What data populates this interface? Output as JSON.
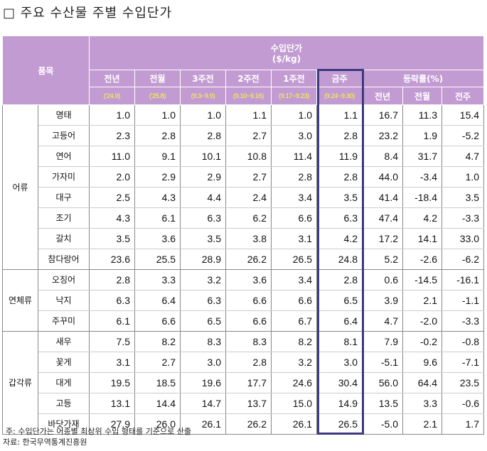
{
  "title": "□ 주요 수산물 주별 수입단가",
  "header": {
    "item": "품목",
    "price_group": "수입단가",
    "unit": "($/kg)",
    "cols": [
      "전년",
      "전월",
      "3주전",
      "2주전",
      "1주전",
      "금주"
    ],
    "periods": [
      "('24.9)",
      "('25.8)",
      "(9.3~9.9)",
      "(9.10~9.16)",
      "(9.17~9.23)",
      "(9.24~9.30)"
    ],
    "rate_group": "등락률(%)",
    "rate_cols": [
      "전년",
      "전월",
      "전주"
    ]
  },
  "groups": [
    {
      "name": "어류",
      "rows": [
        [
          "명태",
          "1.0",
          "1.0",
          "1.0",
          "1.1",
          "1.0",
          "1.1",
          "16.7",
          "11.3",
          "15.4"
        ],
        [
          "고등어",
          "2.3",
          "2.8",
          "2.8",
          "2.7",
          "3.0",
          "2.8",
          "23.2",
          "1.9",
          "-5.2"
        ],
        [
          "연어",
          "11.0",
          "9.1",
          "10.1",
          "10.8",
          "11.4",
          "11.9",
          "8.4",
          "31.7",
          "4.7"
        ],
        [
          "가자미",
          "2.0",
          "2.9",
          "2.9",
          "2.7",
          "2.8",
          "2.8",
          "44.0",
          "-3.4",
          "1.0"
        ],
        [
          "대구",
          "2.5",
          "4.3",
          "4.4",
          "2.4",
          "3.4",
          "3.5",
          "41.4",
          "-18.4",
          "3.5"
        ],
        [
          "조기",
          "4.3",
          "6.1",
          "6.3",
          "6.2",
          "6.6",
          "6.3",
          "47.4",
          "4.2",
          "-3.3"
        ],
        [
          "갈치",
          "3.5",
          "3.6",
          "3.5",
          "3.8",
          "3.1",
          "4.2",
          "17.2",
          "14.1",
          "33.0"
        ],
        [
          "참다랑어",
          "23.6",
          "25.5",
          "28.9",
          "26.2",
          "26.5",
          "24.8",
          "5.2",
          "-2.6",
          "-6.2"
        ]
      ]
    },
    {
      "name": "연체류",
      "rows": [
        [
          "오징어",
          "2.8",
          "3.3",
          "3.2",
          "3.6",
          "3.4",
          "2.8",
          "0.6",
          "-14.5",
          "-16.1"
        ],
        [
          "낙지",
          "6.3",
          "6.4",
          "6.3",
          "6.6",
          "6.6",
          "6.5",
          "3.9",
          "2.1",
          "-1.1"
        ],
        [
          "주꾸미",
          "6.1",
          "6.6",
          "6.5",
          "6.6",
          "6.7",
          "6.4",
          "4.7",
          "-2.0",
          "-3.3"
        ]
      ]
    },
    {
      "name": "갑각류",
      "rows": [
        [
          "새우",
          "7.5",
          "8.2",
          "8.3",
          "8.3",
          "8.2",
          "8.1",
          "7.9",
          "-0.2",
          "-0.8"
        ],
        [
          "꽃게",
          "3.1",
          "2.7",
          "3.0",
          "2.8",
          "3.2",
          "3.0",
          "-5.1",
          "9.6",
          "-7.1"
        ],
        [
          "대게",
          "19.5",
          "18.5",
          "19.6",
          "17.7",
          "24.6",
          "30.4",
          "56.0",
          "64.4",
          "23.5"
        ],
        [
          "고등",
          "13.1",
          "14.4",
          "14.7",
          "13.7",
          "15.0",
          "14.9",
          "13.5",
          "3.3",
          "-0.6"
        ],
        [
          "바닷가재",
          "27.9",
          "26.0",
          "26.1",
          "26.2",
          "26.1",
          "26.5",
          "-5.0",
          "2.1",
          "1.7"
        ]
      ]
    }
  ],
  "notes": [
    "주: 수입단가는 어종별 최상위 수입 형태를 기준으로 산출",
    "자료: 한국무역통계진흥원"
  ],
  "colors": {
    "header_bg": "#c39bd3",
    "period_text": "#ffff33",
    "highlight_border": "#3c3a7e"
  }
}
